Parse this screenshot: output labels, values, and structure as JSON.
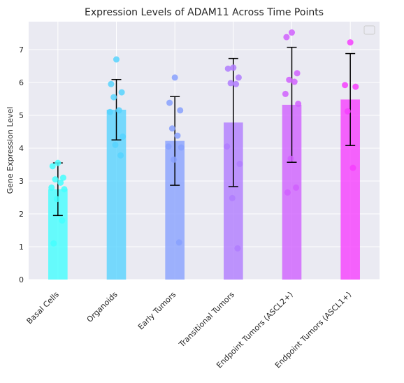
{
  "chart_data": {
    "type": "bar",
    "title": "Expression Levels of ADAM11 Across Time Points",
    "xlabel": "",
    "ylabel": "Gene Expression Level",
    "ylim": [
      0,
      7.85
    ],
    "yticks": [
      0,
      1,
      2,
      3,
      4,
      5,
      6,
      7
    ],
    "grid": true,
    "legend": "top-right (empty)",
    "categories": [
      "Basal Cells",
      "Organoids",
      "Early Tumors",
      "Transitional Tumors",
      "Endpoint Tumors (ASCL2+)",
      "Endpoint Tumors (ASCL1+)"
    ],
    "colors": [
      "#44fefe",
      "#57d3fe",
      "#88a1fe",
      "#b07cfe",
      "#d060fe",
      "#f63efe"
    ],
    "values": [
      2.75,
      5.17,
      4.22,
      4.78,
      5.32,
      5.48
    ],
    "error": [
      0.8,
      0.92,
      1.35,
      1.95,
      1.75,
      1.4
    ],
    "points": [
      [
        3.55,
        3.45,
        3.1,
        3.05,
        2.95,
        2.8,
        2.75,
        2.45,
        1.8,
        1.1
      ],
      [
        6.7,
        5.95,
        5.7,
        5.55,
        5.15,
        5.1,
        4.35,
        4.1,
        3.78
      ],
      [
        6.15,
        5.38,
        5.15,
        4.6,
        4.38,
        4.05,
        4.02,
        3.65,
        1.13
      ],
      [
        6.45,
        6.42,
        6.15,
        5.98,
        5.95,
        4.05,
        3.52,
        2.48,
        0.95
      ],
      [
        7.52,
        7.38,
        6.28,
        6.08,
        6.02,
        5.65,
        5.35,
        3.68,
        2.8,
        2.65
      ],
      [
        7.22,
        5.92,
        5.87,
        5.12,
        3.4
      ]
    ]
  }
}
